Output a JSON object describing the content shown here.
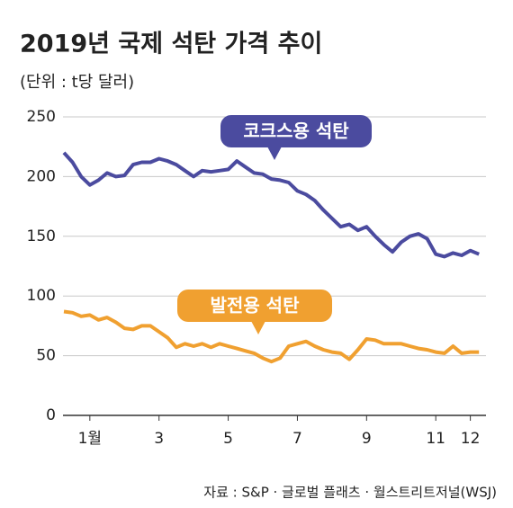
{
  "chart_data": {
    "type": "line",
    "title": "2019년 국제 석탄 가격 추이",
    "subtitle": "(단위 : t당 달러)",
    "source": "자료 : S&P · 글로벌 플래츠 · 월스트리트저널(WSJ)",
    "x": [
      0.25,
      0.5,
      0.75,
      1.0,
      1.25,
      1.5,
      1.75,
      2.0,
      2.25,
      2.5,
      2.75,
      3.0,
      3.25,
      3.5,
      3.75,
      4.0,
      4.25,
      4.5,
      4.75,
      5.0,
      5.25,
      5.5,
      5.75,
      6.0,
      6.25,
      6.5,
      6.75,
      7.0,
      7.25,
      7.5,
      7.75,
      8.0,
      8.25,
      8.5,
      8.75,
      9.0,
      9.25,
      9.5,
      9.75,
      10.0,
      10.25,
      10.5,
      10.75,
      11.0,
      11.25,
      11.5,
      11.75,
      12.0,
      12.25
    ],
    "series": [
      {
        "name": "코크스용 석탄",
        "color": "#4b4b9f",
        "values": [
          220,
          212,
          200,
          193,
          197,
          203,
          200,
          201,
          210,
          212,
          212,
          215,
          213,
          210,
          205,
          200,
          205,
          204,
          205,
          206,
          213,
          208,
          203,
          202,
          198,
          197,
          195,
          188,
          185,
          180,
          172,
          165,
          158,
          160,
          155,
          158,
          150,
          143,
          137,
          145,
          150,
          152,
          148,
          135,
          133,
          136,
          134,
          138,
          135
        ]
      },
      {
        "name": "발전용 석탄",
        "color": "#f0a030",
        "values": [
          87,
          86,
          83,
          84,
          80,
          82,
          78,
          73,
          72,
          75,
          75,
          70,
          65,
          57,
          60,
          58,
          60,
          57,
          60,
          58,
          56,
          54,
          52,
          48,
          45,
          48,
          58,
          60,
          62,
          58,
          55,
          53,
          52,
          47,
          55,
          64,
          63,
          60,
          60,
          60,
          58,
          56,
          55,
          53,
          52,
          58,
          52,
          53,
          53
        ]
      }
    ],
    "xlim": [
      0.25,
      12.4
    ],
    "xticks": [
      {
        "value": 1,
        "label": "1월"
      },
      3,
      5,
      7,
      9,
      11,
      12
    ],
    "ylim": [
      0,
      250
    ],
    "yticks": [
      0,
      50,
      100,
      150,
      200,
      250
    ],
    "grid": true
  }
}
